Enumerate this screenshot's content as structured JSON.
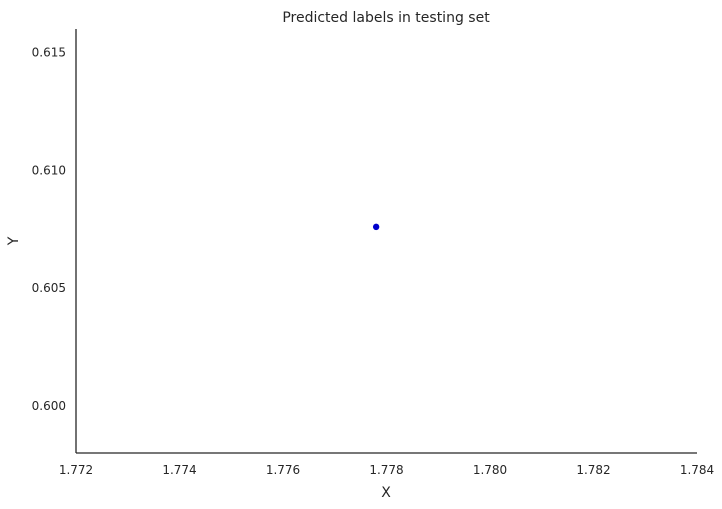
{
  "chart_data": {
    "type": "scatter",
    "title": "Predicted labels in testing set",
    "xlabel": "X",
    "ylabel": "Y",
    "xlim": [
      1.772,
      1.784
    ],
    "ylim": [
      0.598,
      0.616
    ],
    "xticks": [
      "1.772",
      "1.774",
      "1.776",
      "1.778",
      "1.780",
      "1.782",
      "1.784"
    ],
    "yticks": [
      "0.600",
      "0.605",
      "0.610",
      "0.615"
    ],
    "grid": false,
    "series": [
      {
        "color": "#0000cc",
        "x": [
          1.7778
        ],
        "y": [
          0.6076
        ]
      }
    ]
  }
}
